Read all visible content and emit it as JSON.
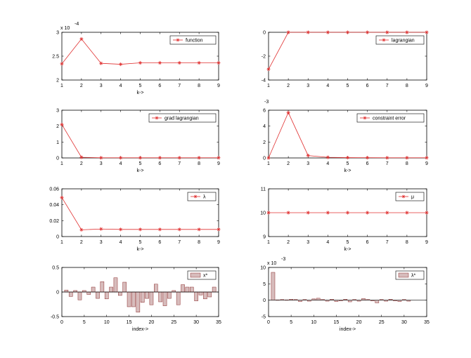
{
  "chart_data": [
    {
      "type": "line",
      "x": [
        1,
        2,
        3,
        4,
        5,
        6,
        7,
        8,
        9
      ],
      "series": [
        {
          "name": "function",
          "values": [
            2.34,
            2.86,
            2.35,
            2.33,
            2.36,
            2.36,
            2.36,
            2.36,
            2.36
          ]
        }
      ],
      "xlabel": "k->",
      "ylim": [
        2,
        3
      ],
      "xlim": [
        1,
        9
      ],
      "xticks": [
        "1",
        "2",
        "3",
        "4",
        "5",
        "6",
        "7",
        "8",
        "9"
      ],
      "yticks": [
        "2",
        "2.5",
        "3"
      ],
      "ytick_values": [
        2,
        2.5,
        3
      ],
      "exponent": "x 10",
      "exponent_power": "-4",
      "legend_position": "top-right",
      "color": "#e03030"
    },
    {
      "type": "line",
      "x": [
        1,
        2,
        3,
        4,
        5,
        6,
        7,
        8,
        9
      ],
      "series": [
        {
          "name": "lagrangian",
          "values": [
            -3.1,
            0,
            0,
            0,
            0,
            0,
            0,
            0,
            0
          ]
        }
      ],
      "xlabel": "",
      "ylim": [
        -4,
        0
      ],
      "xlim": [
        1,
        9
      ],
      "xticks": [
        "1",
        "2",
        "3",
        "4",
        "5",
        "6",
        "7",
        "8",
        "9"
      ],
      "yticks": [
        "-4",
        "-2",
        "0"
      ],
      "ytick_values": [
        -4,
        -2,
        0
      ],
      "legend_position": "top-right",
      "color": "#e03030"
    },
    {
      "type": "line",
      "x": [
        1,
        2,
        3,
        4,
        5,
        6,
        7,
        8,
        9
      ],
      "series": [
        {
          "name": "grad lagrangian",
          "values": [
            2.1,
            0.04,
            0.01,
            0.01,
            0.01,
            0.01,
            0.01,
            0.01,
            0.01
          ]
        }
      ],
      "xlabel": "k->",
      "ylim": [
        0,
        3
      ],
      "xlim": [
        1,
        9
      ],
      "xticks": [
        "1",
        "2",
        "3",
        "4",
        "5",
        "6",
        "7",
        "8",
        "9"
      ],
      "yticks": [
        "0",
        "1",
        "2",
        "3"
      ],
      "ytick_values": [
        0,
        1,
        2,
        3
      ],
      "legend_position": "top-right",
      "color": "#e03030"
    },
    {
      "type": "line",
      "x": [
        1,
        2,
        3,
        4,
        5,
        6,
        7,
        8,
        9
      ],
      "series": [
        {
          "name": "constraint error",
          "values": [
            0,
            5.7,
            0.3,
            0.08,
            0.04,
            0.03,
            0.02,
            0.02,
            0.02
          ]
        }
      ],
      "xlabel": "k->",
      "ylim": [
        0,
        6
      ],
      "xlim": [
        1,
        9
      ],
      "xticks": [
        "1",
        "2",
        "3",
        "4",
        "5",
        "6",
        "7",
        "8",
        "9"
      ],
      "yticks": [
        "0",
        "2",
        "4",
        "6"
      ],
      "ytick_values": [
        0,
        2,
        4,
        6
      ],
      "exponent_power": "-3",
      "legend_position": "top-right",
      "color": "#e03030"
    },
    {
      "type": "line",
      "x": [
        1,
        2,
        3,
        4,
        5,
        6,
        7,
        8,
        9
      ],
      "series": [
        {
          "name": "λ",
          "values": [
            0.049,
            0.0085,
            0.0095,
            0.009,
            0.009,
            0.009,
            0.009,
            0.009,
            0.009
          ]
        }
      ],
      "xlabel": "k->",
      "ylim": [
        0,
        0.06
      ],
      "xlim": [
        1,
        9
      ],
      "xticks": [
        "1",
        "2",
        "3",
        "4",
        "5",
        "6",
        "7",
        "8",
        "9"
      ],
      "yticks": [
        "0",
        "0.02",
        "0.04",
        "0.06"
      ],
      "ytick_values": [
        0,
        0.02,
        0.04,
        0.06
      ],
      "legend_position": "top-right",
      "color": "#e03030"
    },
    {
      "type": "line",
      "x": [
        1,
        2,
        3,
        4,
        5,
        6,
        7,
        8,
        9
      ],
      "series": [
        {
          "name": "μ",
          "values": [
            10,
            10,
            10,
            10,
            10,
            10,
            10,
            10,
            10
          ]
        }
      ],
      "xlabel": "k->",
      "ylim": [
        9,
        11
      ],
      "xlim": [
        1,
        9
      ],
      "xticks": [
        "1",
        "2",
        "3",
        "4",
        "5",
        "6",
        "7",
        "8",
        "9"
      ],
      "yticks": [
        "9",
        "10",
        "11"
      ],
      "ytick_values": [
        9,
        10,
        11
      ],
      "legend_position": "top-right",
      "color": "#e03030"
    },
    {
      "type": "bar",
      "x": [
        1,
        2,
        3,
        4,
        5,
        6,
        7,
        8,
        9,
        10,
        11,
        12,
        13,
        14,
        15,
        16,
        17,
        18,
        19,
        20,
        21,
        22,
        23,
        24,
        25,
        26,
        27,
        28,
        29,
        30,
        31,
        32,
        33,
        34
      ],
      "series": [
        {
          "name": "x*",
          "values": [
            0.04,
            -0.09,
            0.03,
            -0.16,
            0.03,
            -0.05,
            0.1,
            -0.13,
            0.21,
            -0.14,
            0.1,
            0.29,
            -0.07,
            0.2,
            -0.3,
            -0.3,
            -0.41,
            -0.21,
            -0.13,
            -0.26,
            0.16,
            -0.2,
            -0.28,
            -0.13,
            0.03,
            -0.26,
            0.15,
            0.1,
            0.1,
            -0.18,
            -0.06,
            -0.14,
            -0.1,
            0.1
          ]
        }
      ],
      "xlabel": "index->",
      "ylim": [
        -0.5,
        0.5
      ],
      "xlim": [
        0,
        35
      ],
      "xticks": [
        "0",
        "5",
        "10",
        "15",
        "20",
        "25",
        "30",
        "35"
      ],
      "xtick_values": [
        0,
        5,
        10,
        15,
        20,
        25,
        30,
        35
      ],
      "yticks": [
        "-0.5",
        "0",
        "0.5"
      ],
      "ytick_values": [
        -0.5,
        0,
        0.5
      ],
      "legend_position": "top-right",
      "color": "#d7bcbc"
    },
    {
      "type": "bar",
      "x": [
        1,
        2,
        3,
        4,
        5,
        6,
        7,
        8,
        9,
        10,
        11,
        12,
        13,
        14,
        15,
        16,
        17,
        18,
        19,
        20,
        21,
        22,
        23,
        24,
        25,
        26,
        27,
        28,
        29,
        30,
        31
      ],
      "series": [
        {
          "name": "λ*",
          "values": [
            8.5,
            0.1,
            0.2,
            0.1,
            0.3,
            0.2,
            -0.4,
            0.2,
            -0.3,
            0.4,
            0.6,
            0.2,
            -0.3,
            0.3,
            -0.4,
            -0.2,
            0.3,
            -0.5,
            0.2,
            -0.3,
            0.5,
            0.2,
            -0.2,
            -0.8,
            0.2,
            -0.3,
            0.3,
            -0.2,
            -0.4,
            0.2,
            -0.3
          ]
        }
      ],
      "xlabel": "index->",
      "ylim": [
        -5,
        10
      ],
      "xlim": [
        0,
        35
      ],
      "xticks": [
        "0",
        "5",
        "10",
        "15",
        "20",
        "25",
        "30",
        "35"
      ],
      "xtick_values": [
        0,
        5,
        10,
        15,
        20,
        25,
        30,
        35
      ],
      "yticks": [
        "-5",
        "0",
        "5",
        "10"
      ],
      "ytick_values": [
        -5,
        0,
        5,
        10
      ],
      "exponent": "x 10",
      "exponent_power": "-3",
      "legend_position": "top-right",
      "color": "#d7bcbc"
    }
  ]
}
